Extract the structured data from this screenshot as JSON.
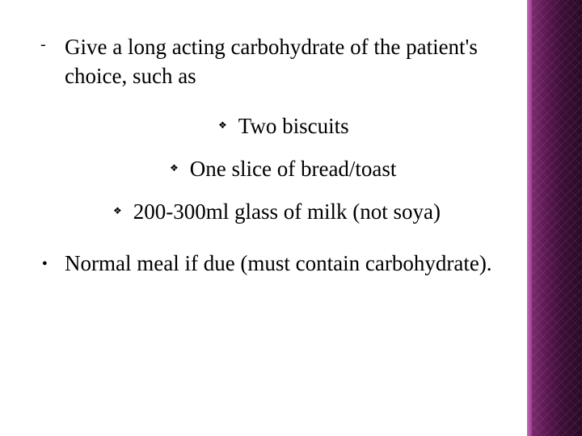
{
  "slide": {
    "main_item": "Give a long acting carbohydrate of the patient's choice, such as",
    "sub_items": [
      "Two biscuits",
      "One slice of bread/toast",
      "200-300ml glass of milk (not soya)"
    ],
    "last_item": "Normal meal if due (must contain carbohydrate)."
  },
  "style": {
    "background_color": "#ffffff",
    "text_color": "#000000",
    "font_family": "Georgia, Times New Roman, serif",
    "main_fontsize": 27,
    "sidebar_gradient": [
      "#7a2a6d",
      "#5a1850",
      "#3d0f37",
      "#2a0a26"
    ],
    "sidebar_edge": [
      "#c768b8",
      "#9c3d8c"
    ],
    "bullets": {
      "dash": "-",
      "diamond": "❖",
      "round": "●"
    }
  }
}
